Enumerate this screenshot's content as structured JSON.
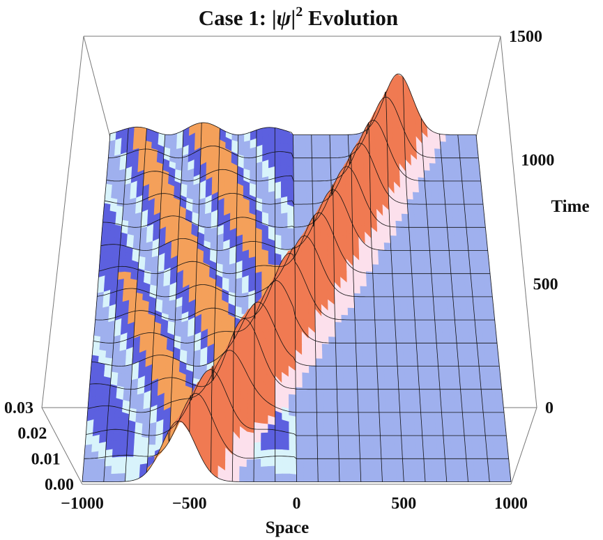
{
  "chart_data": {
    "type": "surface3d",
    "title": "Case 1: |ψ|² Evolution",
    "title_parts": {
      "prefix": "Case 1: |",
      "psi": "ψ",
      "bar": "|",
      "sup": "2",
      "suffix": " Evolution"
    },
    "xlabel": "Space",
    "ylabel": "Time",
    "zlabel": "",
    "xlim": [
      -1000,
      1000
    ],
    "ylim": [
      0,
      1500
    ],
    "zlim": [
      0,
      0.03
    ],
    "x_ticks": [
      -1000,
      -500,
      0,
      500,
      1000
    ],
    "x_tick_labels": [
      "−1000",
      "−500",
      "0",
      "500",
      "1000"
    ],
    "y_ticks": [
      0,
      500,
      1000,
      1500
    ],
    "y_tick_labels": [
      "0",
      "500",
      "1000",
      "1500"
    ],
    "z_ticks": [
      0.0,
      0.01,
      0.02,
      0.03
    ],
    "z_tick_labels": [
      "0.00",
      "0.01",
      "0.02",
      "0.03"
    ],
    "colormap": [
      "#9fb0ee",
      "#5c60df",
      "#d8f3fb",
      "#f4a05a",
      "#f07a52",
      "#fce0ec"
    ],
    "soliton": {
      "x_start": -550,
      "speed": 0.75,
      "peak": 0.025,
      "width": 110
    },
    "reflected_wave": {
      "x_end": -800,
      "speed": 0.58,
      "amplitude": 0.005,
      "wavelength": 380
    },
    "background_level": 0.001
  }
}
